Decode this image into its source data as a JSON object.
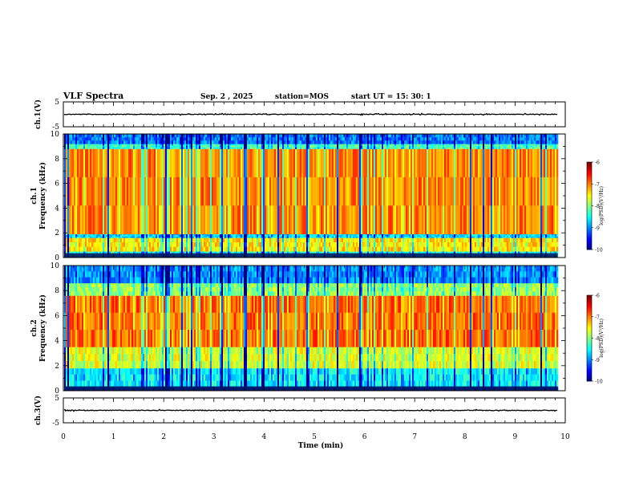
{
  "header": {
    "title": "VLF Spectra",
    "date": "Sep. 2 , 2025",
    "station": "station=MOS",
    "start": "start UT =  15: 30: 1"
  },
  "chart_data": [
    {
      "type": "line",
      "name": "ch1-voltage",
      "ylabel": "ch.1(V)",
      "ylim": [
        -5,
        5
      ],
      "yticks": [
        "5",
        "-5"
      ],
      "level": 0,
      "xlim": [
        0,
        10
      ]
    },
    {
      "type": "heatmap",
      "name": "ch1-spectrogram",
      "ylabel": "ch.1",
      "ylabel2": "Frequency (kHz)",
      "ylim": [
        0,
        10
      ],
      "yticks": [
        "0",
        "2",
        "4",
        "6",
        "8",
        "10"
      ],
      "xlim": [
        0,
        10
      ],
      "data_end_min": 9.85,
      "bands": [
        {
          "from": 0,
          "to": 0.5,
          "level": -8.4
        },
        {
          "from": 0.5,
          "to": 1.6,
          "level": -7.4
        },
        {
          "from": 1.6,
          "to": 1.9,
          "level": -8.6
        },
        {
          "from": 1.9,
          "to": 8.8,
          "level": -7.0
        },
        {
          "from": 8.8,
          "to": 9.2,
          "level": -8.2
        },
        {
          "from": 9.2,
          "to": 10,
          "level": -9.0
        }
      ],
      "colorbar": {
        "label": "log(PSD)(V²/Hz)",
        "ticks": [
          "-6",
          "-7",
          "-8",
          "-9",
          "-10"
        ],
        "range": [
          -10,
          -6
        ]
      }
    },
    {
      "type": "heatmap",
      "name": "ch2-spectrogram",
      "ylabel": "ch.2",
      "ylabel2": "Frequency (kHz)",
      "ylim": [
        0,
        10
      ],
      "yticks": [
        "0",
        "2",
        "4",
        "6",
        "8",
        "10"
      ],
      "xlim": [
        0,
        10
      ],
      "data_end_min": 9.85,
      "bands": [
        {
          "from": 0,
          "to": 0.3,
          "level": -9.4
        },
        {
          "from": 0.3,
          "to": 1.8,
          "level": -8.5
        },
        {
          "from": 1.8,
          "to": 3.5,
          "level": -7.6
        },
        {
          "from": 3.5,
          "to": 7.6,
          "level": -6.9
        },
        {
          "from": 7.6,
          "to": 8.6,
          "level": -7.9
        },
        {
          "from": 8.6,
          "to": 10,
          "level": -8.9
        }
      ],
      "colorbar": {
        "label": "log(PSD)(V²/Hz)",
        "ticks": [
          "-6",
          "-7",
          "-8",
          "-9",
          "-10"
        ],
        "range": [
          -10,
          -6
        ]
      }
    },
    {
      "type": "line",
      "name": "ch3-voltage",
      "ylabel": "ch.3(V)",
      "ylim": [
        -5,
        5
      ],
      "yticks": [
        "5",
        "-5"
      ],
      "level": 0,
      "xlim": [
        0,
        10
      ]
    }
  ],
  "xaxis": {
    "label": "Time (min)",
    "ticks": [
      "0",
      "1",
      "2",
      "3",
      "4",
      "5",
      "6",
      "7",
      "8",
      "9",
      "10"
    ]
  },
  "colors": {
    "background": "#ffffff",
    "trace": "#000000"
  }
}
